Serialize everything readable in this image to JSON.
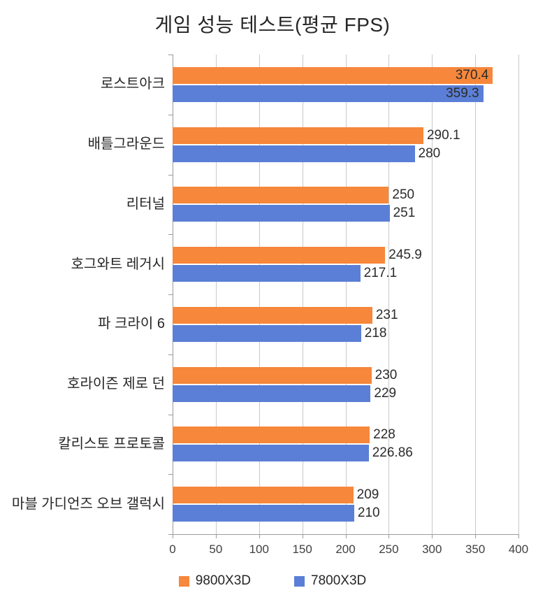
{
  "title": "게임 성능 테스트(평균 FPS)",
  "chart_data": {
    "type": "bar",
    "orientation": "horizontal",
    "title": "게임 성능 테스트(평균 FPS)",
    "categories": [
      "로스트아크",
      "배틀그라운드",
      "리터널",
      "호그와트 레거시",
      "파 크라이 6",
      "호라이즌 제로 던",
      "칼리스토 프로토콜",
      "마블 가디언즈 오브 갤럭시"
    ],
    "series": [
      {
        "name": "9800X3D",
        "color": "#f6873b",
        "values": [
          370.4,
          290.1,
          250,
          245.9,
          231,
          230,
          228,
          209
        ]
      },
      {
        "name": "7800X3D",
        "color": "#5b7fd6",
        "values": [
          359.3,
          280,
          251,
          217.1,
          218,
          229,
          226.86,
          210
        ]
      }
    ],
    "xlabel": "",
    "ylabel": "",
    "xlim": [
      0,
      400
    ],
    "x_ticks": [
      0,
      50,
      100,
      150,
      200,
      250,
      300,
      350,
      400
    ],
    "grid": true,
    "legend_position": "bottom",
    "value_labels": "shown at bar ends (inside end for longest bars)"
  },
  "colors": {
    "series_9800x3d": "#f6873b",
    "series_7800x3d": "#5b7fd6",
    "gridline": "#c9c9c9",
    "axis_line": "#9b9b9b",
    "text": "#262626"
  }
}
